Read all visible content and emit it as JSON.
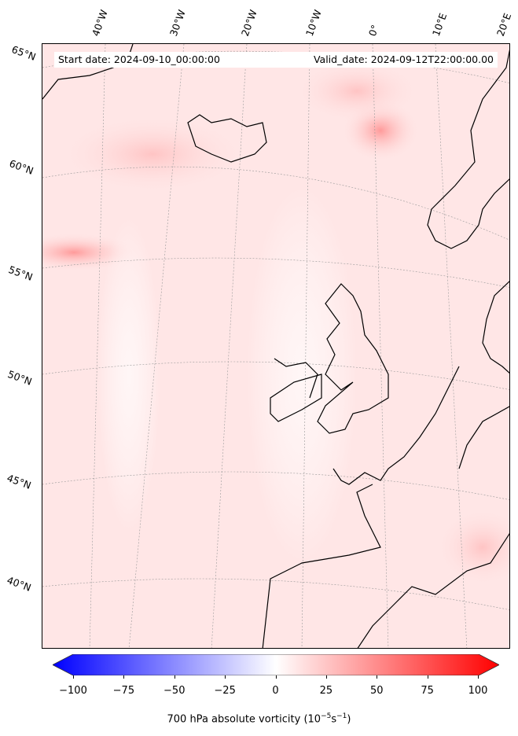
{
  "header": {
    "start_date": "Start date: 2024-09-10_00:00:00",
    "valid_date": "Valid_date: 2024-09-12T22:00:00.00"
  },
  "lat_labels": [
    "65°N",
    "60°N",
    "55°N",
    "50°N",
    "45°N",
    "40°N"
  ],
  "lon_labels": [
    "40°W",
    "30°W",
    "20°W",
    "10°W",
    "0°",
    "10°E",
    "20°E"
  ],
  "colorbar": {
    "ticks": [
      "−100",
      "−75",
      "−50",
      "−25",
      "0",
      "25",
      "50",
      "75",
      "100"
    ],
    "values": [
      -100,
      -75,
      -50,
      -25,
      0,
      25,
      50,
      75,
      100
    ],
    "min": -100,
    "max": 100,
    "label_pre": "700 hPa absolute vorticity (10",
    "exp1": "−5",
    "mid": "s",
    "exp2": "−1",
    "label_post": ")",
    "low_color": "#0000ff",
    "high_color": "#ff0000"
  }
}
